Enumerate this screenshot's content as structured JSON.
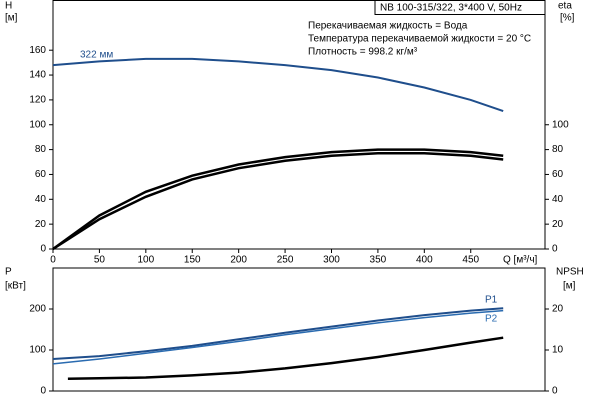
{
  "chart_data": [
    {
      "type": "line",
      "title": "NB 100-315/322, 3*400 V, 50Hz",
      "annotations": [
        "Перекачиваемая жидкость = Вода",
        "Температура перекачиваемой жидкости = 20 °C",
        "Плотность = 998.2 кг/м³"
      ],
      "ylabel": [
        "H",
        "[м]"
      ],
      "y2label": [
        "eta",
        "[%]"
      ],
      "xlabel": "Q [м³/ч]",
      "x": [
        0,
        50,
        100,
        150,
        200,
        250,
        300,
        350,
        400,
        450,
        485
      ],
      "xlim": [
        0,
        530
      ],
      "xticks": [
        0,
        50,
        100,
        150,
        200,
        250,
        300,
        350,
        400,
        450
      ],
      "ylim": [
        0,
        200
      ],
      "yticks": [
        0,
        20,
        40,
        60,
        80,
        100,
        120,
        140,
        160
      ],
      "y2lim": [
        0,
        200
      ],
      "y2ticks": [
        0,
        20,
        40,
        60,
        80,
        100
      ],
      "series": [
        {
          "name": "322 мм",
          "color": "#1f4e8c",
          "values": [
            148,
            151,
            153,
            153,
            151,
            148,
            144,
            138,
            130,
            120,
            111
          ]
        },
        {
          "color": "#000000",
          "axis": "y2",
          "values": [
            0,
            27,
            46,
            59,
            68,
            74,
            78,
            80,
            80,
            78,
            75
          ]
        },
        {
          "color": "#000000",
          "axis": "y2",
          "values": [
            0,
            24,
            42,
            56,
            65,
            71,
            75,
            77,
            77,
            75,
            72
          ]
        }
      ]
    },
    {
      "type": "line",
      "ylabel": [
        "P",
        "[кВт]"
      ],
      "y2label": [
        "NPSH",
        "[м]"
      ],
      "x": [
        0,
        50,
        100,
        150,
        200,
        250,
        300,
        350,
        400,
        450,
        485
      ],
      "xlim": [
        0,
        530
      ],
      "ylim": [
        0,
        300
      ],
      "yticks": [
        0,
        100,
        200
      ],
      "y2lim": [
        0,
        30
      ],
      "y2ticks": [
        0,
        10,
        20
      ],
      "series": [
        {
          "name": "P1",
          "color": "#1f4e8c",
          "values": [
            78,
            85,
            97,
            110,
            126,
            142,
            157,
            172,
            185,
            196,
            202
          ]
        },
        {
          "name": "P2",
          "color": "#2a6bb0",
          "values": [
            66,
            78,
            92,
            106,
            121,
            137,
            152,
            166,
            179,
            190,
            196
          ]
        },
        {
          "color": "#000000",
          "axis": "y2",
          "x": [
            16,
            50,
            100,
            150,
            200,
            250,
            300,
            350,
            400,
            450,
            485
          ],
          "values": [
            3.0,
            3.1,
            3.3,
            3.8,
            4.5,
            5.5,
            6.8,
            8.3,
            10,
            11.8,
            13
          ]
        }
      ]
    }
  ]
}
